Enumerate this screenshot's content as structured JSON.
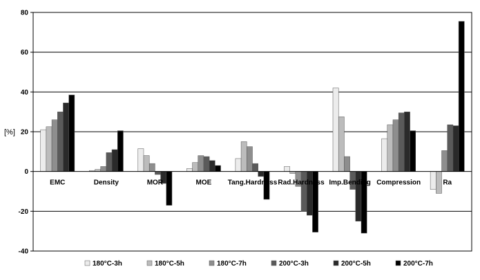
{
  "chart_data": {
    "type": "bar",
    "title": "",
    "xlabel": "",
    "ylabel": "[%]",
    "ylim": [
      -40,
      80
    ],
    "yticks": [
      -40,
      -20,
      0,
      20,
      40,
      60,
      80
    ],
    "grid": true,
    "legend_position": "bottom",
    "categories": [
      "EMC",
      "Density",
      "MOR",
      "MOE",
      "Tang.Hardness",
      "Rad.Hardness",
      "Imp.Bending",
      "Compression",
      "Ra"
    ],
    "series": [
      {
        "name": "180°C-3h",
        "color": "#ececec",
        "values": [
          21,
          0.5,
          11.5,
          1.5,
          6.5,
          2.5,
          42,
          16.5,
          -9
        ]
      },
      {
        "name": "180°C-5h",
        "color": "#bcbcbc",
        "values": [
          22.5,
          1,
          8,
          4.5,
          15,
          -1,
          27.5,
          23.5,
          -11
        ]
      },
      {
        "name": "180°C-7h",
        "color": "#8e8e8e",
        "values": [
          26,
          2.5,
          4,
          8,
          12.5,
          -7.5,
          7.5,
          26,
          10.5
        ]
      },
      {
        "name": "200°C-3h",
        "color": "#5a5a5a",
        "values": [
          30,
          9.5,
          -1.5,
          7.5,
          4,
          -20,
          -9,
          29.5,
          23.5
        ]
      },
      {
        "name": "200°C-5h",
        "color": "#2a2a2a",
        "values": [
          34.5,
          11,
          -6,
          5.5,
          -2.5,
          -22,
          -25,
          30,
          23
        ]
      },
      {
        "name": "200°C-7h",
        "color": "#000000",
        "values": [
          38.5,
          20.5,
          -17,
          3,
          -14,
          -30.5,
          -31,
          20.5,
          75.5
        ]
      }
    ]
  }
}
